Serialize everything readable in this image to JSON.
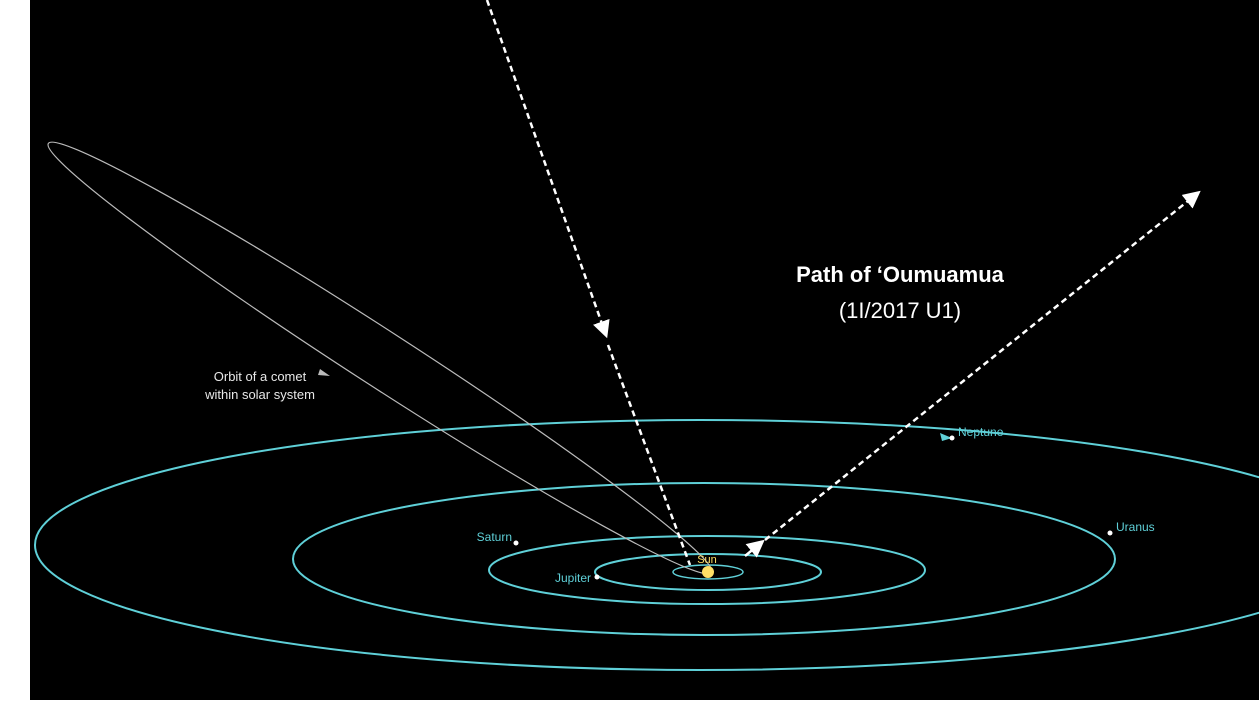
{
  "title": "Path of ‘Oumuamua",
  "designation": "(1I/2017 U1)",
  "comet_label": [
    "Orbit of a comet",
    "within solar system"
  ],
  "planets": [
    "Neptune",
    "Uranus",
    "Saturn",
    "Jupiter"
  ],
  "sun": "Sun"
}
